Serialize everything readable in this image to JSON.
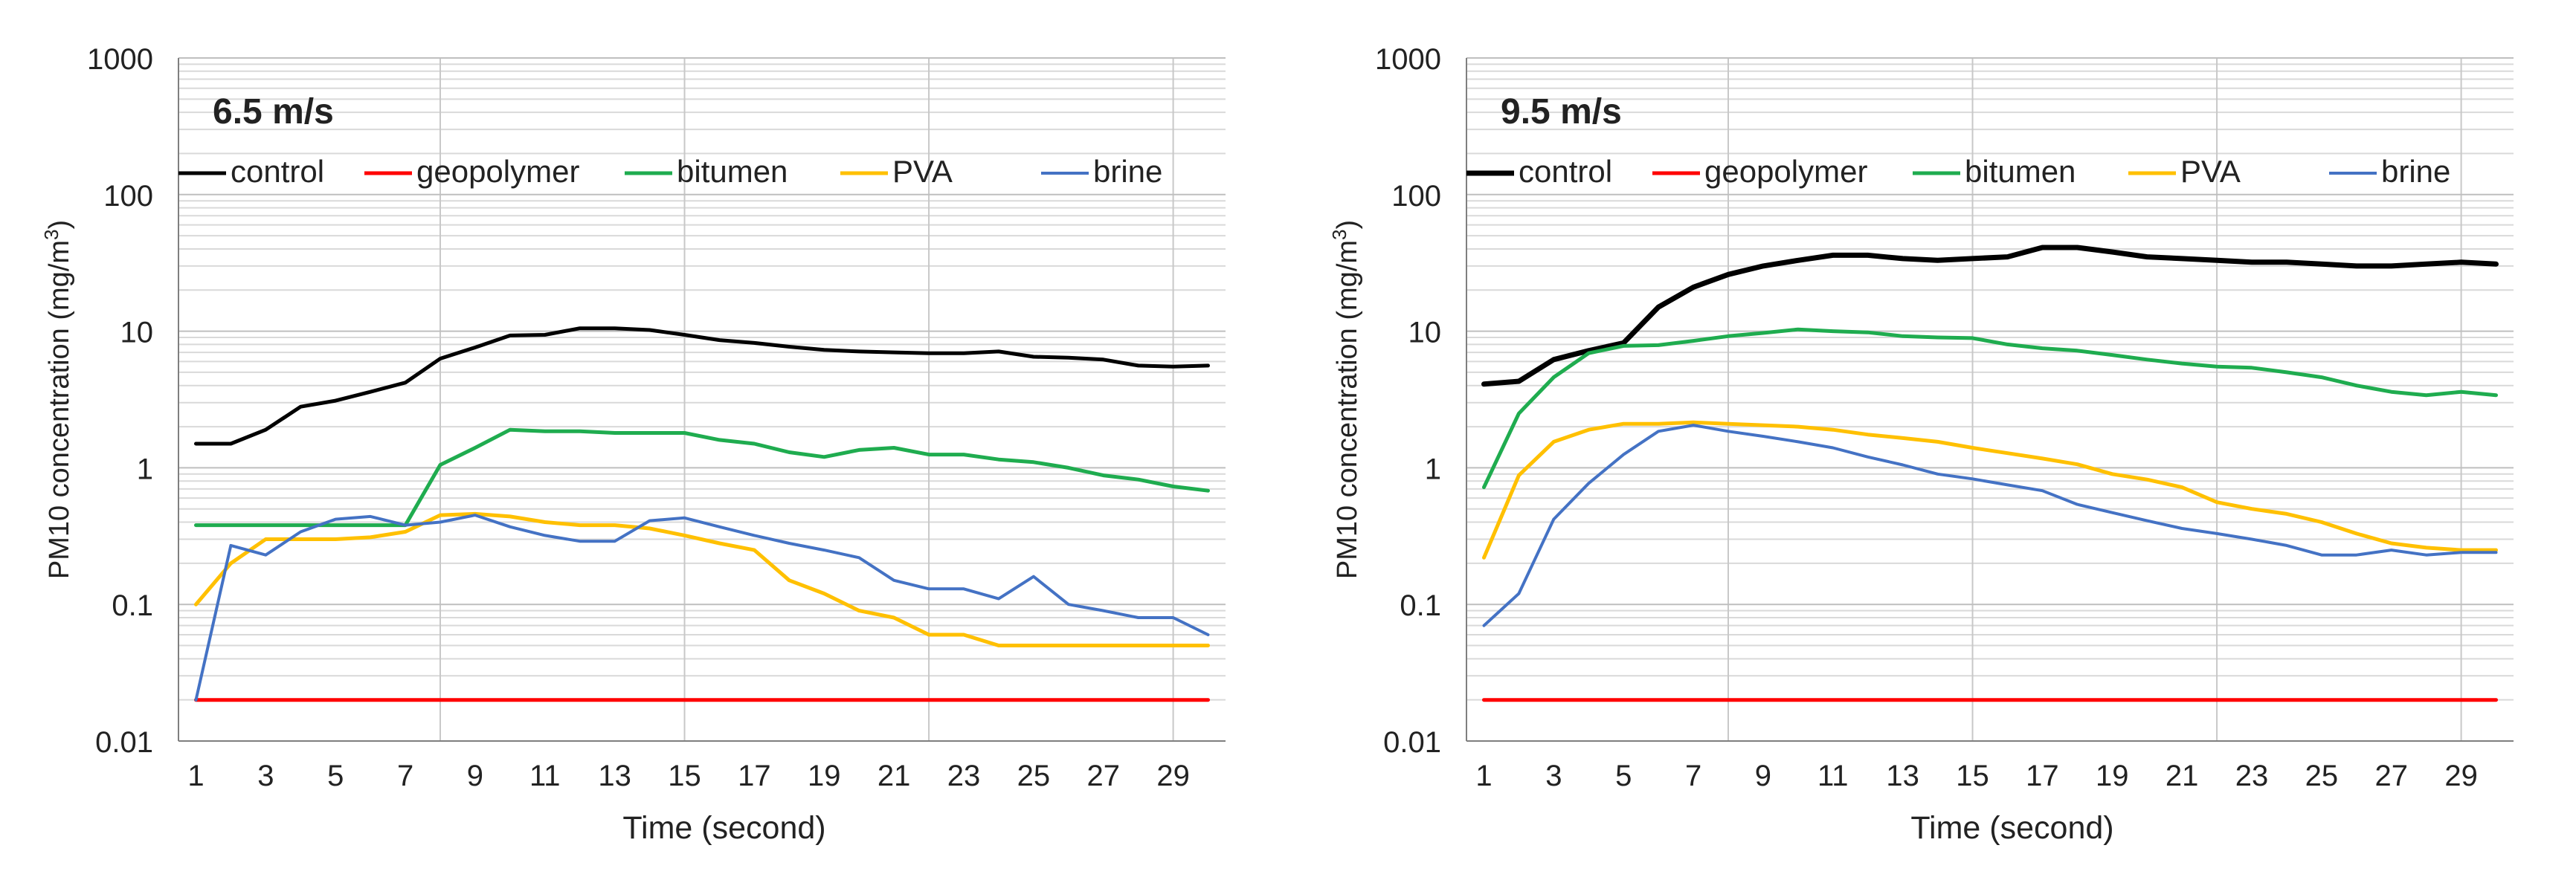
{
  "chart_data": [
    {
      "type": "line",
      "title": "6.5 m/s",
      "xlabel": "Time (second)",
      "ylabel": "PM10 concentration  (mg/m",
      "ylabel_superscript": "3",
      "ylabel_close": ")",
      "yscale": "log",
      "ylim": [
        0.01,
        1000
      ],
      "xlim": [
        0.5,
        30.5
      ],
      "ytick_labels": [
        "0.01",
        "0.1",
        "1",
        "10",
        "100",
        "1000"
      ],
      "xtick_labels": [
        "1",
        "3",
        "5",
        "7",
        "9",
        "11",
        "13",
        "15",
        "17",
        "19",
        "21",
        "23",
        "25",
        "27",
        "29"
      ],
      "legend": [
        "control",
        "geopolymer",
        "bitumen",
        "PVA",
        "brine"
      ],
      "x": [
        1,
        2,
        3,
        4,
        5,
        6,
        7,
        8,
        9,
        10,
        11,
        12,
        13,
        14,
        15,
        16,
        17,
        18,
        19,
        20,
        21,
        22,
        23,
        24,
        25,
        26,
        27,
        28,
        29,
        30
      ],
      "series": [
        {
          "name": "control",
          "color": "#000000",
          "width": 5,
          "values": [
            1.5,
            1.5,
            1.9,
            2.8,
            3.1,
            3.6,
            4.2,
            6.3,
            7.6,
            9.3,
            9.4,
            10.5,
            10.5,
            10.2,
            9.4,
            8.6,
            8.2,
            7.7,
            7.3,
            7.1,
            7.0,
            6.9,
            6.9,
            7.1,
            6.5,
            6.4,
            6.2,
            5.6,
            5.5,
            5.6
          ]
        },
        {
          "name": "geopolymer",
          "color": "#ff0000",
          "width": 5,
          "values": [
            0.02,
            0.02,
            0.02,
            0.02,
            0.02,
            0.02,
            0.02,
            0.02,
            0.02,
            0.02,
            0.02,
            0.02,
            0.02,
            0.02,
            0.02,
            0.02,
            0.02,
            0.02,
            0.02,
            0.02,
            0.02,
            0.02,
            0.02,
            0.02,
            0.02,
            0.02,
            0.02,
            0.02,
            0.02,
            0.02
          ]
        },
        {
          "name": "bitumen",
          "color": "#1fac4f",
          "width": 5,
          "values": [
            0.38,
            0.38,
            0.38,
            0.38,
            0.38,
            0.38,
            0.38,
            1.05,
            1.4,
            1.9,
            1.85,
            1.85,
            1.8,
            1.8,
            1.8,
            1.6,
            1.5,
            1.3,
            1.2,
            1.35,
            1.4,
            1.25,
            1.25,
            1.15,
            1.1,
            1.0,
            0.88,
            0.82,
            0.73,
            0.68
          ]
        },
        {
          "name": "PVA",
          "color": "#ffc000",
          "width": 5,
          "values": [
            0.1,
            0.2,
            0.3,
            0.3,
            0.3,
            0.31,
            0.34,
            0.45,
            0.46,
            0.44,
            0.4,
            0.38,
            0.38,
            0.36,
            0.32,
            0.28,
            0.25,
            0.15,
            0.12,
            0.09,
            0.08,
            0.06,
            0.06,
            0.05,
            0.05,
            0.05,
            0.05,
            0.05,
            0.05,
            0.05
          ]
        },
        {
          "name": "brine",
          "color": "#4472c4",
          "width": 4,
          "values": [
            0.02,
            0.27,
            0.23,
            0.34,
            0.42,
            0.44,
            0.38,
            0.4,
            0.45,
            0.37,
            0.32,
            0.29,
            0.29,
            0.41,
            0.43,
            0.37,
            0.32,
            0.28,
            0.25,
            0.22,
            0.15,
            0.13,
            0.13,
            0.11,
            0.16,
            0.1,
            0.09,
            0.08,
            0.08,
            0.06
          ]
        }
      ]
    },
    {
      "type": "line",
      "title": "9.5 m/s",
      "xlabel": "Time (second)",
      "ylabel": "PM10 concentration  (mg/m",
      "ylabel_superscript": "3",
      "ylabel_close": ")",
      "yscale": "log",
      "ylim": [
        0.01,
        1000
      ],
      "xlim": [
        0.5,
        30.5
      ],
      "ytick_labels": [
        "0.01",
        "0.1",
        "1",
        "10",
        "100",
        "1000"
      ],
      "xtick_labels": [
        "1",
        "3",
        "5",
        "7",
        "9",
        "11",
        "13",
        "15",
        "17",
        "19",
        "21",
        "23",
        "25",
        "27",
        "29"
      ],
      "legend": [
        "control",
        "geopolymer",
        "bitumen",
        "PVA",
        "brine"
      ],
      "x": [
        1,
        2,
        3,
        4,
        5,
        6,
        7,
        8,
        9,
        10,
        11,
        12,
        13,
        14,
        15,
        16,
        17,
        18,
        19,
        20,
        21,
        22,
        23,
        24,
        25,
        26,
        27,
        28,
        29,
        30
      ],
      "series": [
        {
          "name": "control",
          "color": "#000000",
          "width": 7,
          "values": [
            4.1,
            4.3,
            6.2,
            7.2,
            8.2,
            15,
            21,
            26,
            30,
            33,
            36,
            36,
            34,
            33,
            34,
            35,
            41,
            41,
            38,
            35,
            34,
            33,
            32,
            32,
            31,
            30,
            30,
            31,
            32,
            31
          ]
        },
        {
          "name": "geopolymer",
          "color": "#ff0000",
          "width": 5,
          "values": [
            0.02,
            0.02,
            0.02,
            0.02,
            0.02,
            0.02,
            0.02,
            0.02,
            0.02,
            0.02,
            0.02,
            0.02,
            0.02,
            0.02,
            0.02,
            0.02,
            0.02,
            0.02,
            0.02,
            0.02,
            0.02,
            0.02,
            0.02,
            0.02,
            0.02,
            0.02,
            0.02,
            0.02,
            0.02,
            0.02
          ]
        },
        {
          "name": "bitumen",
          "color": "#1fac4f",
          "width": 5,
          "values": [
            0.72,
            2.5,
            4.6,
            6.9,
            7.8,
            7.9,
            8.5,
            9.2,
            9.7,
            10.3,
            10.0,
            9.8,
            9.2,
            9.0,
            8.9,
            8.0,
            7.5,
            7.2,
            6.7,
            6.2,
            5.8,
            5.5,
            5.4,
            5.0,
            4.6,
            4.0,
            3.6,
            3.4,
            3.6,
            3.4
          ]
        },
        {
          "name": "PVA",
          "color": "#ffc000",
          "width": 5,
          "values": [
            0.22,
            0.88,
            1.55,
            1.9,
            2.1,
            2.1,
            2.15,
            2.1,
            2.05,
            2.0,
            1.9,
            1.75,
            1.65,
            1.55,
            1.4,
            1.28,
            1.17,
            1.06,
            0.9,
            0.82,
            0.72,
            0.56,
            0.5,
            0.46,
            0.4,
            0.33,
            0.28,
            0.26,
            0.25,
            0.25
          ]
        },
        {
          "name": "brine",
          "color": "#4472c4",
          "width": 4,
          "values": [
            0.07,
            0.12,
            0.42,
            0.77,
            1.25,
            1.85,
            2.05,
            1.85,
            1.7,
            1.55,
            1.4,
            1.2,
            1.05,
            0.9,
            0.83,
            0.75,
            0.68,
            0.54,
            0.47,
            0.41,
            0.36,
            0.33,
            0.3,
            0.27,
            0.23,
            0.23,
            0.25,
            0.23,
            0.24,
            0.24
          ]
        }
      ]
    }
  ]
}
